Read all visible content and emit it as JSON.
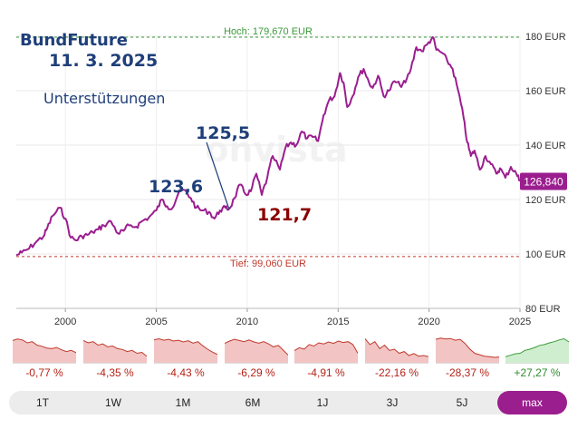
{
  "annotations": {
    "title": "BundFuture",
    "date": "11. 3. 2025",
    "subtitle": "Unterstützungen",
    "level_1": "125,5",
    "level_2": "123,6",
    "level_3": "121,7"
  },
  "watermark": "onvista",
  "colors": {
    "line": "#9b1e8f",
    "high": "#3a9b3a",
    "low": "#c0392b",
    "neg": "#f2c4c4",
    "pos": "#cfeecf",
    "neg_text": "#b42318",
    "pos_text": "#2e8b2e",
    "ann_blue": "#1f3f7a",
    "ann_red": "#8b0000"
  },
  "chart_data": {
    "type": "line",
    "xlim": [
      1997.3,
      2025.0
    ],
    "ylim": [
      80,
      180
    ],
    "x_ticks": [
      "2000",
      "2005",
      "2010",
      "2015",
      "2020",
      "2025"
    ],
    "y_ticks": [
      "80 EUR",
      "100 EUR",
      "120 EUR",
      "140 EUR",
      "160 EUR",
      "180 EUR"
    ],
    "high_label": "Hoch: 179,670 EUR",
    "high_value": 179.67,
    "low_label": "Tief: 99,060 EUR",
    "low_value": 99.06,
    "last_label": "126,840",
    "last_value": 126.84,
    "series": [
      {
        "x": [
          1997.3,
          1997.6,
          1998.0,
          1998.4,
          1998.8,
          1999.0,
          1999.3,
          1999.7,
          2000.0,
          2000.3,
          2000.6,
          2000.9,
          2001.2,
          2001.5,
          2001.8,
          2002.1,
          2002.5,
          2002.9,
          2003.2,
          2003.5,
          2003.9,
          2004.2,
          2004.6,
          2005.0,
          2005.3,
          2005.6,
          2005.9,
          2006.2,
          2006.5,
          2006.9,
          2007.2,
          2007.5,
          2007.9,
          2008.2,
          2008.5,
          2008.8,
          2009.0,
          2009.3,
          2009.6,
          2009.9,
          2010.2,
          2010.5,
          2010.8,
          2011.1,
          2011.4,
          2011.8,
          2012.1,
          2012.4,
          2012.7,
          2013.0,
          2013.3,
          2013.6,
          2013.9,
          2014.2,
          2014.5,
          2014.8,
          2015.1,
          2015.3,
          2015.5,
          2015.8,
          2016.1,
          2016.4,
          2016.7,
          2016.9,
          2017.2,
          2017.5,
          2017.8,
          2018.1,
          2018.4,
          2018.7,
          2019.0,
          2019.3,
          2019.6,
          2019.9,
          2020.2,
          2020.4,
          2020.7,
          2021.0,
          2021.3,
          2021.6,
          2021.9,
          2022.1,
          2022.3,
          2022.5,
          2022.8,
          2023.1,
          2023.4,
          2023.7,
          2023.9,
          2024.2,
          2024.5,
          2024.8,
          2025.0
        ],
        "y": [
          99.5,
          100.5,
          102.0,
          104.5,
          106.5,
          109.5,
          114.0,
          117.0,
          113.0,
          106.0,
          105.0,
          106.5,
          107.0,
          108.0,
          109.0,
          110.5,
          112.0,
          107.5,
          108.5,
          110.5,
          110.0,
          112.0,
          113.5,
          116.0,
          120.0,
          117.5,
          117.0,
          122.0,
          123.6,
          120.5,
          117.0,
          116.0,
          115.5,
          113.0,
          116.0,
          117.0,
          116.5,
          120.5,
          125.5,
          122.0,
          123.0,
          129.5,
          121.7,
          128.0,
          136.0,
          131.0,
          139.0,
          141.0,
          140.0,
          145.0,
          142.5,
          143.0,
          141.5,
          151.0,
          156.5,
          158.0,
          166.5,
          163.0,
          154.0,
          158.0,
          165.0,
          168.0,
          163.0,
          161.0,
          165.5,
          158.0,
          160.0,
          163.5,
          162.0,
          163.0,
          168.0,
          176.0,
          174.5,
          177.0,
          179.67,
          175.0,
          174.0,
          171.0,
          168.0,
          160.0,
          150.0,
          141.0,
          136.0,
          138.0,
          131.0,
          136.0,
          133.0,
          129.5,
          131.5,
          128.0,
          132.0,
          129.5,
          126.84
        ]
      }
    ]
  },
  "mini_charts": [
    {
      "label": "-0,77 %",
      "values": [
        8,
        8.5,
        8.2,
        7.2,
        7.6,
        6.4,
        6.0,
        5.4,
        5.2,
        5.6,
        4.8,
        4.2,
        4.6,
        3.8
      ],
      "trend": "neg"
    },
    {
      "label": "-4,35 %",
      "values": [
        8,
        7.2,
        7.6,
        6.4,
        6.8,
        5.8,
        6.1,
        5.2,
        4.9,
        4.2,
        4.6,
        3.6,
        3.9,
        2.6
      ],
      "trend": "neg"
    },
    {
      "label": "-4,43 %",
      "values": [
        8.2,
        8.6,
        8.1,
        8.4,
        7.8,
        8.1,
        7.5,
        7.9,
        7.1,
        7.6,
        6.2,
        5.0,
        4.0,
        3.2
      ],
      "trend": "neg"
    },
    {
      "label": "-6,29 %",
      "values": [
        7.0,
        7.8,
        8.4,
        8.0,
        7.6,
        8.2,
        7.5,
        7.1,
        7.6,
        6.8,
        5.8,
        6.3,
        4.7,
        3.0
      ],
      "trend": "neg"
    },
    {
      "label": "-4,91 %",
      "values": [
        4.5,
        5.5,
        5.0,
        6.6,
        6.1,
        7.2,
        6.8,
        7.5,
        7.0,
        7.8,
        7.3,
        7.6,
        6.6,
        3.6
      ],
      "trend": "neg"
    },
    {
      "label": "-22,16 %",
      "values": [
        8.6,
        6.6,
        7.6,
        5.2,
        6.4,
        4.6,
        5.0,
        3.6,
        4.2,
        2.8,
        3.5,
        2.6,
        2.8,
        2.4
      ],
      "trend": "neg"
    },
    {
      "label": "-28,37 %",
      "values": [
        8.4,
        8.8,
        8.5,
        8.7,
        8.1,
        8.4,
        7.0,
        5.0,
        3.6,
        3.1,
        2.6,
        2.4,
        2.2,
        2.3
      ],
      "trend": "neg"
    },
    {
      "label": "+27,27 %",
      "values": [
        2.4,
        2.9,
        3.4,
        3.6,
        4.6,
        5.0,
        5.6,
        6.3,
        6.6,
        7.2,
        7.6,
        8.2,
        8.6,
        7.5
      ],
      "trend": "pos"
    }
  ],
  "tabs": [
    "1T",
    "1W",
    "1M",
    "6M",
    "1J",
    "3J",
    "5J",
    "max"
  ],
  "active_tab": "max"
}
